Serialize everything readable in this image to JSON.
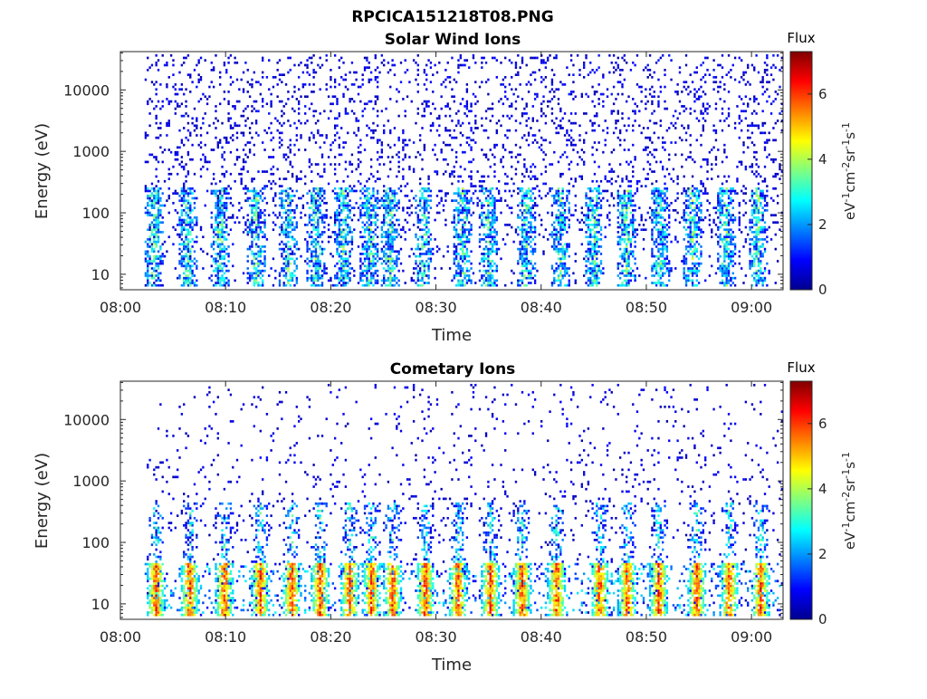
{
  "figure": {
    "title": "RPCICA151218T08.PNG"
  },
  "chart_data": [
    {
      "type": "heatmap",
      "title": "Solar Wind Ions",
      "xlabel": "Time",
      "ylabel": "Energy (eV)",
      "x_tick_labels": [
        "08:00",
        "08:10",
        "08:20",
        "08:30",
        "08:40",
        "08:50",
        "09:00"
      ],
      "x_ticks_minutes": [
        0,
        10,
        20,
        30,
        40,
        50,
        60
      ],
      "xlim_minutes": [
        0,
        63
      ],
      "data_start_minute": 2.3,
      "data_end_minute": 63,
      "y_scale": "log",
      "y_tick_labels": [
        "10",
        "100",
        "1000",
        "10000"
      ],
      "y_ticks": [
        10,
        100,
        1000,
        10000
      ],
      "ylim": [
        5.6,
        42000
      ],
      "colorbar": {
        "title": "Flux",
        "label": "eV-1cm-2sr-1s-1",
        "ticks": [
          0,
          2,
          4,
          6
        ],
        "range": [
          0,
          7.3
        ]
      },
      "description_of_values": "sparse low-flux counts (0-1) across 40 eV - 35 keV; vertical bursts of flux 1-4 below ~300 eV",
      "burst_minutes": [
        3.2,
        6.4,
        9.5,
        12.9,
        16.0,
        18.6,
        21.2,
        23.7,
        25.6,
        28.8,
        32.5,
        35.0,
        38.6,
        41.8,
        45.0,
        48.1,
        51.3,
        54.4,
        57.6,
        60.6
      ],
      "max_burst_flux": 3.5
    },
    {
      "type": "heatmap",
      "title": "Cometary Ions",
      "xlabel": "Time",
      "ylabel": "Energy (eV)",
      "x_tick_labels": [
        "08:00",
        "08:10",
        "08:20",
        "08:30",
        "08:40",
        "08:50",
        "09:00"
      ],
      "x_ticks_minutes": [
        0,
        10,
        20,
        30,
        40,
        50,
        60
      ],
      "xlim_minutes": [
        0,
        63
      ],
      "data_start_minute": 2.3,
      "data_end_minute": 63,
      "y_scale": "log",
      "y_tick_labels": [
        "10",
        "100",
        "1000",
        "10000"
      ],
      "y_ticks": [
        10,
        100,
        1000,
        10000
      ],
      "ylim": [
        5.6,
        42000
      ],
      "colorbar": {
        "title": "Flux",
        "label": "eV-1cm-2sr-1s-1",
        "ticks": [
          0,
          2,
          4,
          6
        ],
        "range": [
          0,
          7.3
        ]
      },
      "description_of_values": "high flux 4-7 in bursts between ~6-45 eV, with tails to ~500 eV; sparse low-flux counts above 100 eV",
      "burst_minutes": [
        3.4,
        6.6,
        9.9,
        13.3,
        16.3,
        19.0,
        21.8,
        23.9,
        25.9,
        29.0,
        32.1,
        35.2,
        38.2,
        41.5,
        45.6,
        48.2,
        51.2,
        54.8,
        57.9,
        60.9
      ],
      "max_burst_flux": 7.0
    }
  ]
}
